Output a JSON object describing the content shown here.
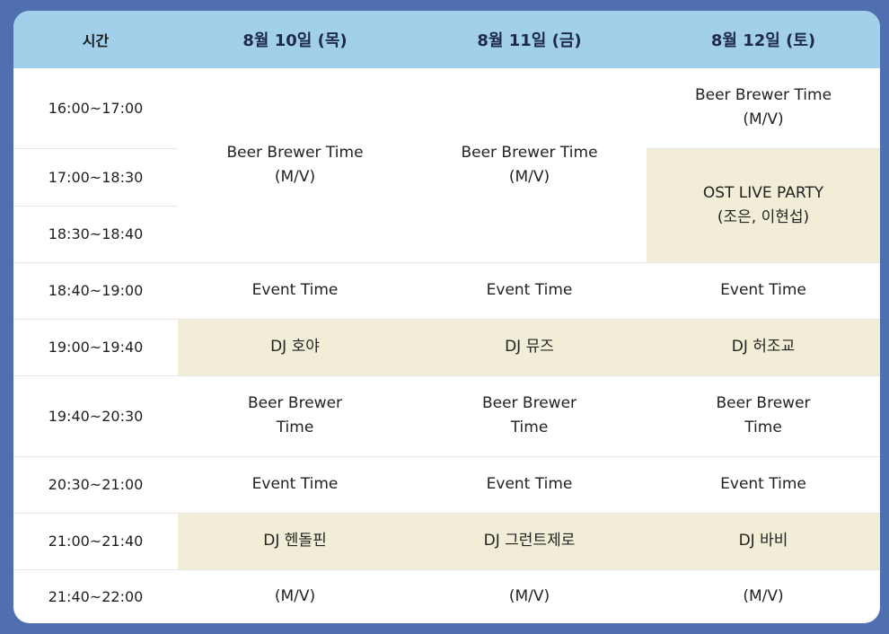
{
  "header": {
    "time_label": "시간",
    "days": [
      "8월 10일 (목)",
      "8월 11일 (금)",
      "8월 12일 (토)"
    ]
  },
  "times": [
    "16:00~17:00",
    "17:00~18:30",
    "18:30~18:40",
    "18:40~19:00",
    "19:00~19:40",
    "19:40~20:30",
    "20:30~21:00",
    "21:00~21:40",
    "21:40~22:00"
  ],
  "cells": {
    "d1_block": [
      "Beer Brewer Time",
      "(M/V)"
    ],
    "d2_block": [
      "Beer Brewer Time",
      "(M/V)"
    ],
    "d3_r1": [
      "Beer Brewer Time",
      "(M/V)"
    ],
    "d3_block": [
      "OST LIVE PARTY",
      "(조은, 이현섭)"
    ],
    "event": "Event Time",
    "dj_r5": [
      "DJ 호야",
      "DJ 뮤즈",
      "DJ 허조교"
    ],
    "beer_brewer": [
      "Beer Brewer",
      "Time"
    ],
    "dj_r8": [
      "DJ 헨돌핀",
      "DJ 그런트제로",
      "DJ 바비"
    ],
    "mv": "(M/V)"
  },
  "colors": {
    "background": "#4f6fb0",
    "header": "#a2d0ea",
    "highlight": "#f2edd6"
  }
}
